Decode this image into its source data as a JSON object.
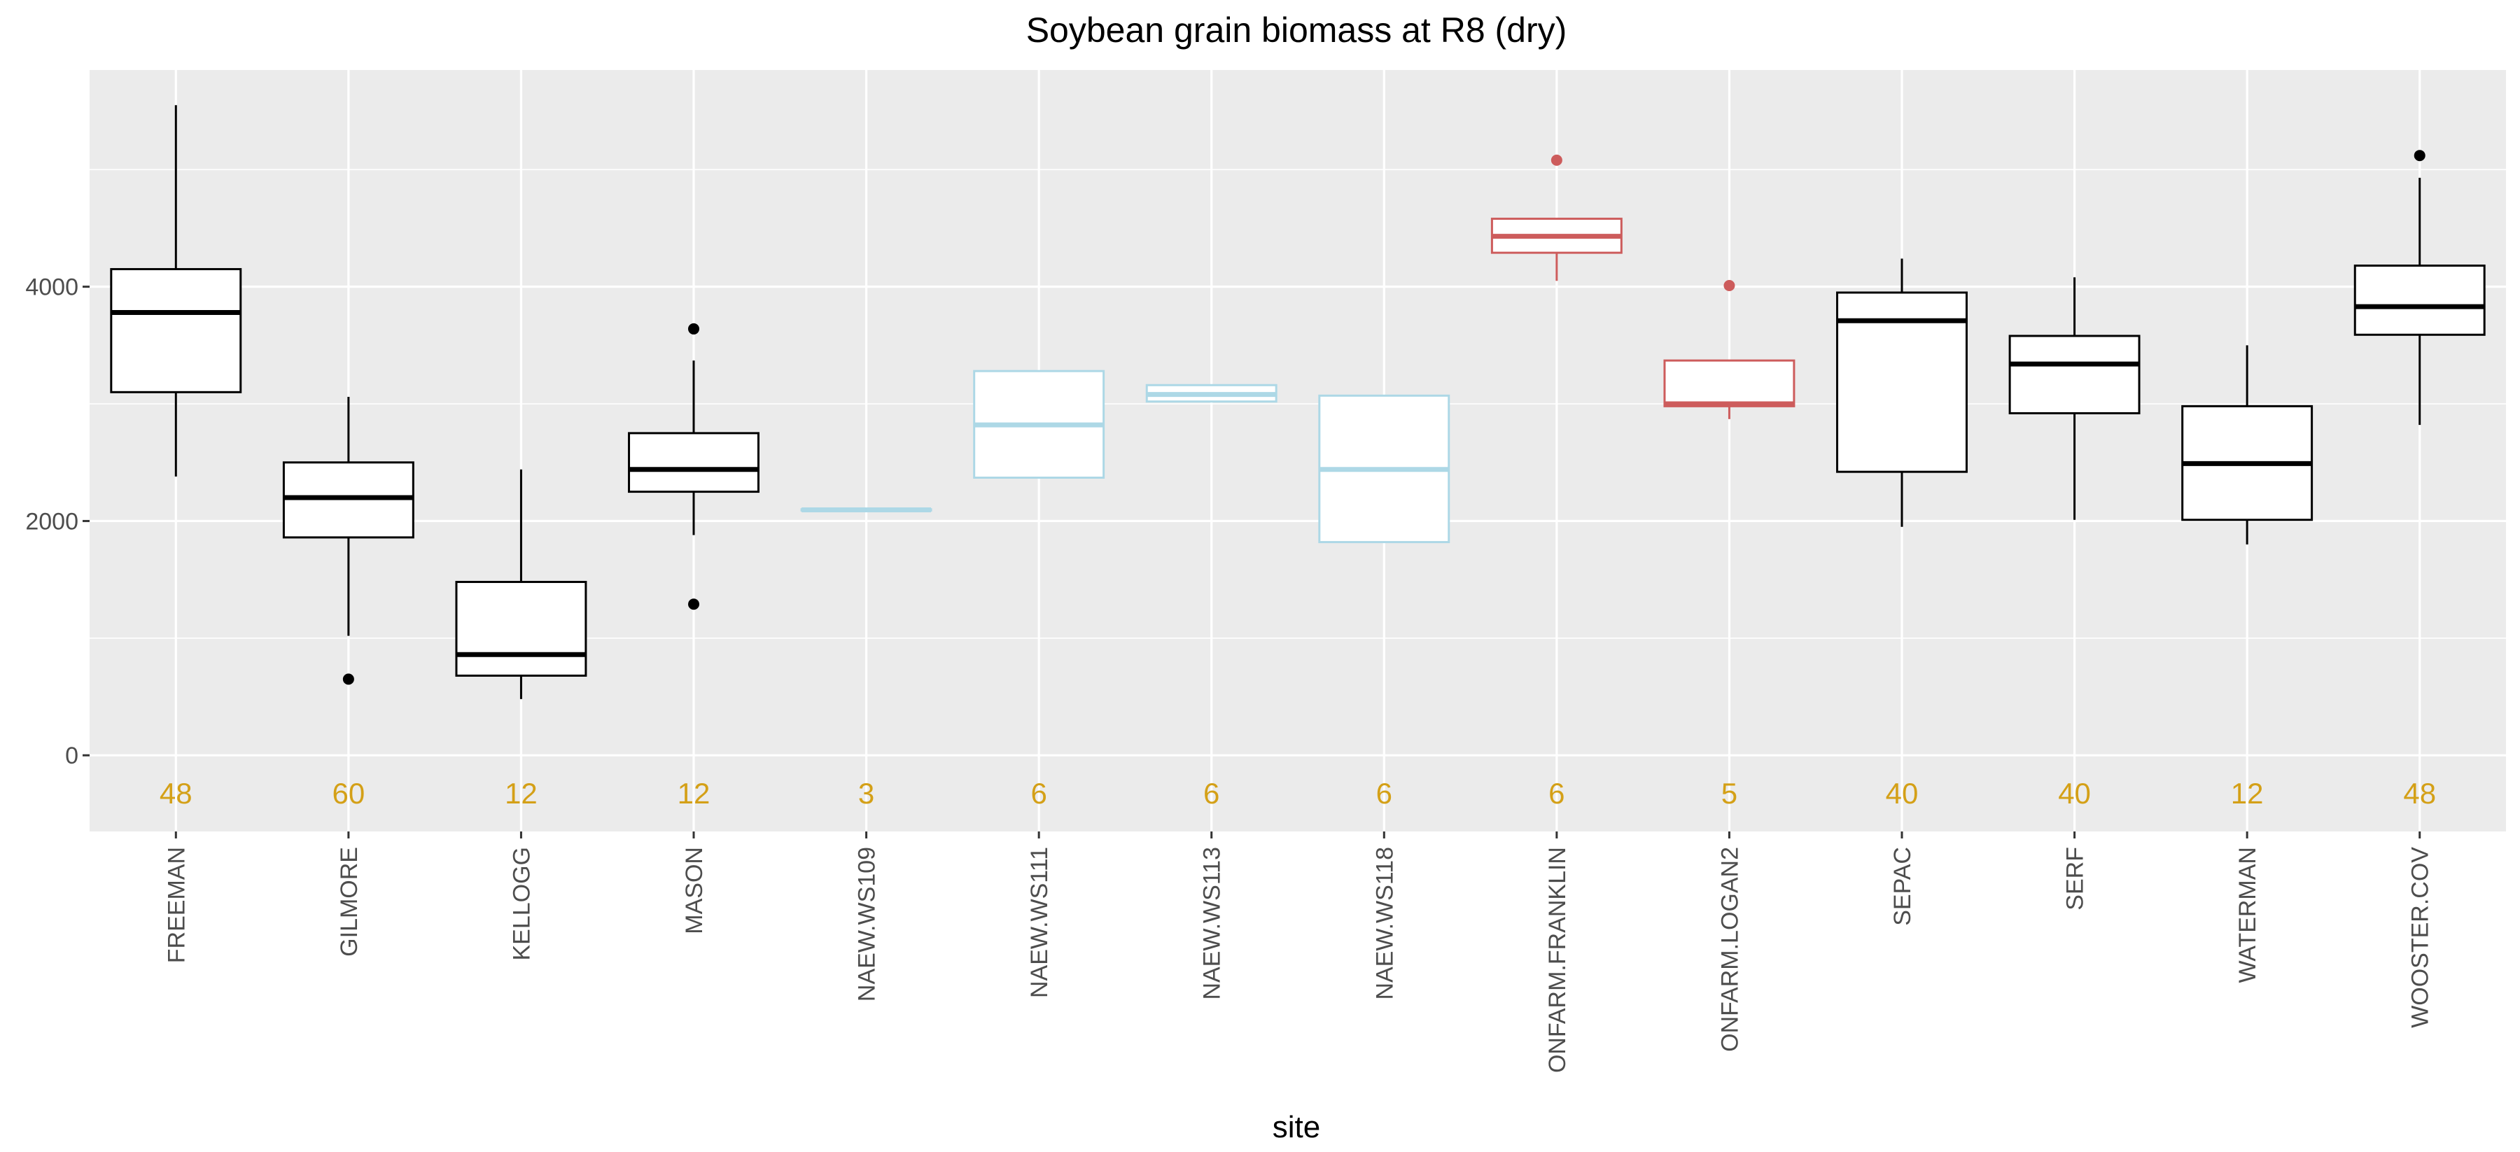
{
  "chart_data": {
    "type": "boxplot",
    "title": "Soybean grain biomass at R8 (dry)",
    "xlabel": "site",
    "ylabel": "",
    "ylim": [
      -650,
      5850
    ],
    "yticks": [
      0,
      2000,
      4000
    ],
    "grid": true,
    "count_color": "#D4A017",
    "colors": {
      "panel": "#EBEBEB",
      "grid": "#FFFFFF",
      "default": "#000000",
      "lightblue": "#ADD8E6",
      "red": "#CD5C5C"
    },
    "categories": [
      "FREEMAN",
      "GILMORE",
      "KELLOGG",
      "MASON",
      "NAEW.WS109",
      "NAEW.WS111",
      "NAEW.WS113",
      "NAEW.WS118",
      "ONFARM.FRANKLIN",
      "ONFARM.LOGAN2",
      "SEPAC",
      "SERF",
      "WATERMAN",
      "WOOSTER.COV"
    ],
    "boxes": [
      {
        "site": "FREEMAN",
        "color": "#000000",
        "min": 2380,
        "q1": 3100,
        "median": 3780,
        "q3": 4150,
        "max": 5550,
        "outliers": [],
        "n": "48"
      },
      {
        "site": "GILMORE",
        "color": "#000000",
        "min": 1020,
        "q1": 1860,
        "median": 2200,
        "q3": 2500,
        "max": 3060,
        "outliers": [
          650
        ],
        "n": "60"
      },
      {
        "site": "KELLOGG",
        "color": "#000000",
        "min": 480,
        "q1": 680,
        "median": 860,
        "q3": 1480,
        "max": 2440,
        "outliers": [],
        "n": "12"
      },
      {
        "site": "MASON",
        "color": "#000000",
        "min": 1880,
        "q1": 2250,
        "median": 2440,
        "q3": 2750,
        "max": 3370,
        "outliers": [
          3640,
          1290
        ],
        "n": "12"
      },
      {
        "site": "NAEW.WS109",
        "color": "#ADD8E6",
        "min": 2090,
        "q1": 2090,
        "median": 2095,
        "q3": 2100,
        "max": 2100,
        "outliers": [],
        "n": "3"
      },
      {
        "site": "NAEW.WS111",
        "color": "#ADD8E6",
        "min": 2370,
        "q1": 2370,
        "median": 2820,
        "q3": 3280,
        "max": 3280,
        "outliers": [],
        "n": "6"
      },
      {
        "site": "NAEW.WS113",
        "color": "#ADD8E6",
        "min": 3020,
        "q1": 3020,
        "median": 3080,
        "q3": 3160,
        "max": 3160,
        "outliers": [],
        "n": "6"
      },
      {
        "site": "NAEW.WS118",
        "color": "#ADD8E6",
        "min": 1820,
        "q1": 1820,
        "median": 2440,
        "q3": 3070,
        "max": 3070,
        "outliers": [],
        "n": "6"
      },
      {
        "site": "ONFARM.FRANKLIN",
        "color": "#CD5C5C",
        "min": 4050,
        "q1": 4290,
        "median": 4430,
        "q3": 4580,
        "max": 4580,
        "outliers": [
          5080
        ],
        "n": "6"
      },
      {
        "site": "ONFARM.LOGAN2",
        "color": "#CD5C5C",
        "min": 2870,
        "q1": 2980,
        "median": 3000,
        "q3": 3370,
        "max": 3370,
        "outliers": [
          4010
        ],
        "n": "5"
      },
      {
        "site": "SEPAC",
        "color": "#000000",
        "min": 1950,
        "q1": 2420,
        "median": 3710,
        "q3": 3950,
        "max": 4240,
        "outliers": [],
        "n": "40"
      },
      {
        "site": "SERF",
        "color": "#000000",
        "min": 2010,
        "q1": 2920,
        "median": 3340,
        "q3": 3580,
        "max": 4080,
        "outliers": [],
        "n": "40"
      },
      {
        "site": "WATERMAN",
        "color": "#000000",
        "min": 1800,
        "q1": 2010,
        "median": 2490,
        "q3": 2980,
        "max": 3500,
        "outliers": [],
        "n": "12"
      },
      {
        "site": "WOOSTER.COV",
        "color": "#000000",
        "min": 2820,
        "q1": 3590,
        "median": 3830,
        "q3": 4180,
        "max": 4930,
        "outliers": [
          5120
        ],
        "n": "48"
      }
    ]
  }
}
